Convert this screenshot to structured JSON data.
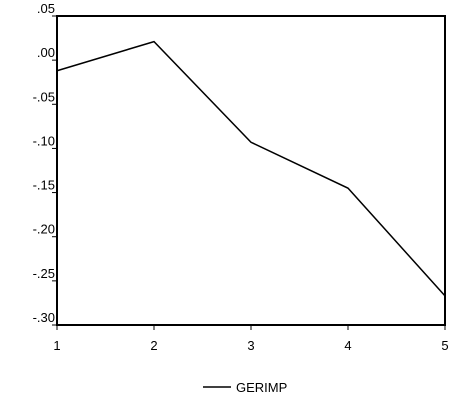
{
  "chart_data": {
    "type": "line",
    "title": "",
    "xlabel": "",
    "ylabel": "",
    "x": [
      1,
      2,
      3,
      4,
      5
    ],
    "x_tick_labels": [
      "1",
      "2",
      "3",
      "4",
      "5"
    ],
    "y_tick_values": [
      0.05,
      0.0,
      -0.05,
      -0.1,
      -0.15,
      -0.2,
      -0.25,
      -0.3
    ],
    "y_tick_labels": [
      ".05",
      ".00",
      "-.05",
      "-.10",
      "-.15",
      "-.20",
      "-.25",
      "-.30"
    ],
    "ylim": [
      -0.3,
      0.05
    ],
    "grid": false,
    "legend_position": "bottom-center",
    "series": [
      {
        "name": "GERIMP",
        "color": "#000000",
        "values": [
          -0.012,
          0.021,
          -0.093,
          -0.145,
          -0.267
        ]
      }
    ]
  }
}
